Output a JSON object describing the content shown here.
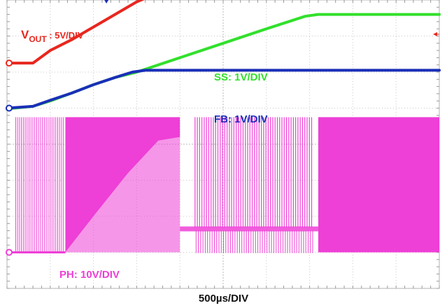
{
  "chart_data": {
    "type": "line",
    "title": "",
    "xlabel": "500µs/DIV",
    "ylabel": "",
    "grid": true,
    "divisions": {
      "x": 10,
      "y": 8
    },
    "time_per_div_us": 500,
    "series": [
      {
        "name": "VOUT",
        "label_main": "V",
        "label_sub": "OUT",
        "label_rest": " : 5V/DIV",
        "color": "#e8271f",
        "volts_per_div": 5,
        "marker": "ground-marker-vout",
        "x_div": [
          0,
          0.6,
          1.0,
          1.5,
          2.0,
          2.5,
          3.0,
          3.3,
          3.5,
          4.5,
          5.5,
          6.5,
          7.5,
          8.5,
          9.4,
          10.0
        ],
        "y_div": [
          6.25,
          6.25,
          6.6,
          6.9,
          7.25,
          7.6,
          7.95,
          8.1,
          8.15,
          8.15,
          8.15,
          8.15,
          8.14,
          8.15,
          8.15,
          8.15
        ]
      },
      {
        "name": "SS",
        "label_main": "SS: 1V/DIV",
        "color": "#32e02c",
        "volts_per_div": 1,
        "x_div": [
          0,
          0.6,
          1.0,
          1.5,
          2.0,
          2.5,
          3.0,
          4.0,
          5.0,
          6.0,
          6.9,
          7.2,
          8.0,
          9.0,
          10.0
        ],
        "y_div": [
          4.98,
          5.05,
          5.2,
          5.42,
          5.65,
          5.85,
          6.0,
          6.4,
          6.8,
          7.2,
          7.55,
          7.6,
          7.6,
          7.6,
          7.6
        ]
      },
      {
        "name": "FB",
        "label_main": "FB: 1V/DIV",
        "color": "#1a2fb8",
        "volts_per_div": 1,
        "marker": "ground-marker-fb",
        "x_div": [
          0,
          0.6,
          1.0,
          1.5,
          2.0,
          2.5,
          2.9,
          3.2,
          4.0,
          5.0,
          6.0,
          7.0,
          8.0,
          9.0,
          10.0
        ],
        "y_div": [
          5.0,
          5.05,
          5.22,
          5.42,
          5.65,
          5.85,
          6.0,
          6.05,
          6.05,
          6.05,
          6.05,
          6.05,
          6.05,
          6.05,
          6.05
        ]
      },
      {
        "name": "PH",
        "label_main": "PH: 10V/DIV",
        "color": "#ee3fd6",
        "volts_per_div": 10,
        "marker": "ground-marker-ph",
        "baseline_div": 1.0,
        "high_div": 4.75,
        "segments": [
          {
            "phase": "startup-burst",
            "x_start_div": 0.2,
            "x_end_div": 1.35,
            "pulse_count": 26
          },
          {
            "phase": "continuous",
            "x_start_div": 1.35,
            "x_end_div": 4.0,
            "envelope_div": [
              [
                1.35,
                1.0
              ],
              [
                2.0,
                2.0
              ],
              [
                2.8,
                3.2
              ],
              [
                3.5,
                4.1
              ],
              [
                4.0,
                4.2
              ]
            ]
          },
          {
            "phase": "settle",
            "x_start_div": 4.0,
            "x_end_div": 7.2,
            "level_div": 1.65
          },
          {
            "phase": "pulse-skip",
            "x_start_div": 4.35,
            "x_end_div": 7.1,
            "pulse_count": 52
          },
          {
            "phase": "continuous-full",
            "x_start_div": 7.2,
            "x_end_div": 10.0,
            "low_div": 1.0
          }
        ]
      }
    ]
  }
}
